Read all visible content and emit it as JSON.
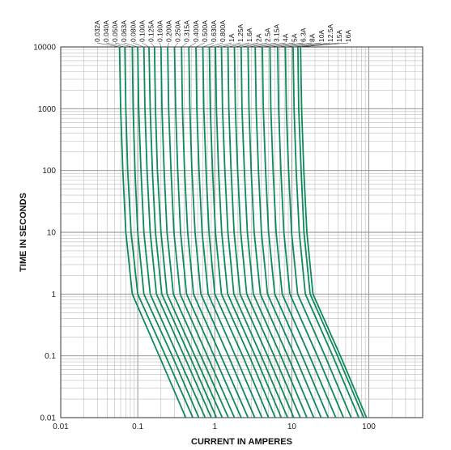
{
  "chart_data": {
    "type": "line",
    "title": "",
    "xlabel": "CURRENT IN AMPERES",
    "ylabel": "TIME IN SECONDS",
    "x_scale": "log",
    "y_scale": "log",
    "xlim": [
      0.01,
      500
    ],
    "ylim": [
      0.01,
      10000
    ],
    "x_ticks": [
      "0.01",
      "0.1",
      "1",
      "10",
      "100"
    ],
    "y_ticks": [
      "0.01",
      "0.1",
      "1",
      "10",
      "100",
      "1000",
      "10000"
    ],
    "grid": true,
    "line_color": "#0e8a5a",
    "series": [
      {
        "name": "0.032A",
        "points": [
          [
            0.058,
            10000
          ],
          [
            0.06,
            1000
          ],
          [
            0.064,
            100
          ],
          [
            0.07,
            10
          ],
          [
            0.085,
            1
          ],
          [
            0.19,
            0.1
          ],
          [
            0.42,
            0.01
          ]
        ]
      },
      {
        "name": "0.040A",
        "points": [
          [
            0.068,
            10000
          ],
          [
            0.07,
            1000
          ],
          [
            0.074,
            100
          ],
          [
            0.082,
            10
          ],
          [
            0.1,
            1
          ],
          [
            0.23,
            0.1
          ],
          [
            0.52,
            0.01
          ]
        ]
      },
      {
        "name": "0.050A",
        "points": [
          [
            0.085,
            10000
          ],
          [
            0.087,
            1000
          ],
          [
            0.092,
            100
          ],
          [
            0.1,
            10
          ],
          [
            0.12,
            1
          ],
          [
            0.28,
            0.1
          ],
          [
            0.62,
            0.01
          ]
        ]
      },
      {
        "name": "0.063A",
        "points": [
          [
            0.1,
            10000
          ],
          [
            0.103,
            1000
          ],
          [
            0.11,
            100
          ],
          [
            0.12,
            10
          ],
          [
            0.145,
            1
          ],
          [
            0.33,
            0.1
          ],
          [
            0.75,
            0.01
          ]
        ]
      },
      {
        "name": "0.080A",
        "points": [
          [
            0.12,
            10000
          ],
          [
            0.124,
            1000
          ],
          [
            0.132,
            100
          ],
          [
            0.145,
            10
          ],
          [
            0.175,
            1
          ],
          [
            0.4,
            0.1
          ],
          [
            0.9,
            0.01
          ]
        ]
      },
      {
        "name": "0.100A",
        "points": [
          [
            0.14,
            10000
          ],
          [
            0.145,
            1000
          ],
          [
            0.155,
            100
          ],
          [
            0.17,
            10
          ],
          [
            0.205,
            1
          ],
          [
            0.47,
            0.1
          ],
          [
            1.05,
            0.01
          ]
        ]
      },
      {
        "name": "0.125A",
        "points": [
          [
            0.165,
            10000
          ],
          [
            0.17,
            1000
          ],
          [
            0.18,
            100
          ],
          [
            0.2,
            10
          ],
          [
            0.24,
            1
          ],
          [
            0.55,
            0.1
          ],
          [
            1.25,
            0.01
          ]
        ]
      },
      {
        "name": "0.160A",
        "points": [
          [
            0.2,
            10000
          ],
          [
            0.206,
            1000
          ],
          [
            0.22,
            100
          ],
          [
            0.24,
            10
          ],
          [
            0.29,
            1
          ],
          [
            0.66,
            0.1
          ],
          [
            1.5,
            0.01
          ]
        ]
      },
      {
        "name": "0.200A",
        "points": [
          [
            0.245,
            10000
          ],
          [
            0.252,
            1000
          ],
          [
            0.27,
            100
          ],
          [
            0.295,
            10
          ],
          [
            0.355,
            1
          ],
          [
            0.8,
            0.1
          ],
          [
            1.8,
            0.01
          ]
        ]
      },
      {
        "name": "0.250A",
        "points": [
          [
            0.3,
            10000
          ],
          [
            0.31,
            1000
          ],
          [
            0.33,
            100
          ],
          [
            0.36,
            10
          ],
          [
            0.43,
            1
          ],
          [
            0.98,
            0.1
          ],
          [
            2.2,
            0.01
          ]
        ]
      },
      {
        "name": "0.315A",
        "points": [
          [
            0.37,
            10000
          ],
          [
            0.38,
            1000
          ],
          [
            0.405,
            100
          ],
          [
            0.445,
            10
          ],
          [
            0.53,
            1
          ],
          [
            1.2,
            0.1
          ],
          [
            2.7,
            0.01
          ]
        ]
      },
      {
        "name": "0.400A",
        "points": [
          [
            0.46,
            10000
          ],
          [
            0.475,
            1000
          ],
          [
            0.505,
            100
          ],
          [
            0.555,
            10
          ],
          [
            0.66,
            1
          ],
          [
            1.5,
            0.1
          ],
          [
            3.3,
            0.01
          ]
        ]
      },
      {
        "name": "0.500A",
        "points": [
          [
            0.57,
            10000
          ],
          [
            0.585,
            1000
          ],
          [
            0.625,
            100
          ],
          [
            0.685,
            10
          ],
          [
            0.82,
            1
          ],
          [
            1.85,
            0.1
          ],
          [
            4.1,
            0.01
          ]
        ]
      },
      {
        "name": "0.630A",
        "points": [
          [
            0.7,
            10000
          ],
          [
            0.72,
            1000
          ],
          [
            0.77,
            100
          ],
          [
            0.84,
            10
          ],
          [
            1.0,
            1
          ],
          [
            2.3,
            0.1
          ],
          [
            5.0,
            0.01
          ]
        ]
      },
      {
        "name": "0.800A",
        "points": [
          [
            0.85,
            10000
          ],
          [
            0.875,
            1000
          ],
          [
            0.935,
            100
          ],
          [
            1.02,
            10
          ],
          [
            1.22,
            1
          ],
          [
            2.8,
            0.1
          ],
          [
            6.1,
            0.01
          ]
        ]
      },
      {
        "name": "1A",
        "points": [
          [
            1.02,
            10000
          ],
          [
            1.05,
            1000
          ],
          [
            1.12,
            100
          ],
          [
            1.23,
            10
          ],
          [
            1.47,
            1
          ],
          [
            3.35,
            0.1
          ],
          [
            7.3,
            0.01
          ]
        ]
      },
      {
        "name": "1.25A",
        "points": [
          [
            1.22,
            10000
          ],
          [
            1.26,
            1000
          ],
          [
            1.35,
            100
          ],
          [
            1.48,
            10
          ],
          [
            1.77,
            1
          ],
          [
            4.0,
            0.1
          ],
          [
            8.8,
            0.01
          ]
        ]
      },
      {
        "name": "1.6A",
        "points": [
          [
            1.48,
            10000
          ],
          [
            1.52,
            1000
          ],
          [
            1.63,
            100
          ],
          [
            1.78,
            10
          ],
          [
            2.13,
            1
          ],
          [
            4.85,
            0.1
          ],
          [
            10.6,
            0.01
          ]
        ]
      },
      {
        "name": "2A",
        "points": [
          [
            1.8,
            10000
          ],
          [
            1.85,
            1000
          ],
          [
            1.98,
            100
          ],
          [
            2.17,
            10
          ],
          [
            2.6,
            1
          ],
          [
            5.9,
            0.1
          ],
          [
            12.9,
            0.01
          ]
        ]
      },
      {
        "name": "2.5A",
        "points": [
          [
            2.2,
            10000
          ],
          [
            2.26,
            1000
          ],
          [
            2.42,
            100
          ],
          [
            2.65,
            10
          ],
          [
            3.17,
            1
          ],
          [
            7.2,
            0.1
          ],
          [
            15.7,
            0.01
          ]
        ]
      },
      {
        "name": "3.15A",
        "points": [
          [
            2.7,
            10000
          ],
          [
            2.78,
            1000
          ],
          [
            2.97,
            100
          ],
          [
            3.25,
            10
          ],
          [
            3.9,
            1
          ],
          [
            8.85,
            0.1
          ],
          [
            19.3,
            0.01
          ]
        ]
      },
      {
        "name": "4A",
        "points": [
          [
            3.35,
            10000
          ],
          [
            3.45,
            1000
          ],
          [
            3.69,
            100
          ],
          [
            4.04,
            10
          ],
          [
            4.84,
            1
          ],
          [
            11.0,
            0.1
          ],
          [
            24.0,
            0.01
          ]
        ]
      },
      {
        "name": "5A",
        "points": [
          [
            4.15,
            10000
          ],
          [
            4.27,
            1000
          ],
          [
            4.57,
            100
          ],
          [
            5.0,
            10
          ],
          [
            6.0,
            1
          ],
          [
            13.6,
            0.1
          ],
          [
            29.7,
            0.01
          ]
        ]
      },
      {
        "name": "6.3A",
        "points": [
          [
            5.2,
            10000
          ],
          [
            5.35,
            1000
          ],
          [
            5.72,
            100
          ],
          [
            6.26,
            10
          ],
          [
            7.5,
            1
          ],
          [
            17.0,
            0.1
          ],
          [
            37.2,
            0.01
          ]
        ]
      },
      {
        "name": "8A",
        "points": [
          [
            6.55,
            10000
          ],
          [
            6.74,
            1000
          ],
          [
            7.21,
            100
          ],
          [
            7.89,
            10
          ],
          [
            9.45,
            1
          ],
          [
            21.5,
            0.1
          ],
          [
            46.9,
            0.01
          ]
        ]
      },
      {
        "name": "10A",
        "points": [
          [
            8.25,
            10000
          ],
          [
            8.49,
            1000
          ],
          [
            9.08,
            100
          ],
          [
            9.94,
            10
          ],
          [
            11.9,
            1
          ],
          [
            27.0,
            0.1
          ],
          [
            59.0,
            0.01
          ]
        ]
      },
      {
        "name": "12.5A",
        "points": [
          [
            10.4,
            10000
          ],
          [
            10.7,
            1000
          ],
          [
            11.4,
            100
          ],
          [
            12.5,
            10
          ],
          [
            15.0,
            1
          ],
          [
            34.0,
            0.1
          ],
          [
            74.3,
            0.01
          ]
        ]
      },
      {
        "name": "15A",
        "points": [
          [
            12.0,
            10000
          ],
          [
            12.3,
            1000
          ],
          [
            13.2,
            100
          ],
          [
            14.4,
            10
          ],
          [
            17.3,
            1
          ],
          [
            39.3,
            0.1
          ],
          [
            85.8,
            0.01
          ]
        ]
      },
      {
        "name": "16A",
        "points": [
          [
            13.0,
            10000
          ],
          [
            13.4,
            1000
          ],
          [
            14.3,
            100
          ],
          [
            15.7,
            10
          ],
          [
            18.8,
            1
          ],
          [
            42.7,
            0.1
          ],
          [
            93.2,
            0.01
          ]
        ]
      }
    ]
  }
}
